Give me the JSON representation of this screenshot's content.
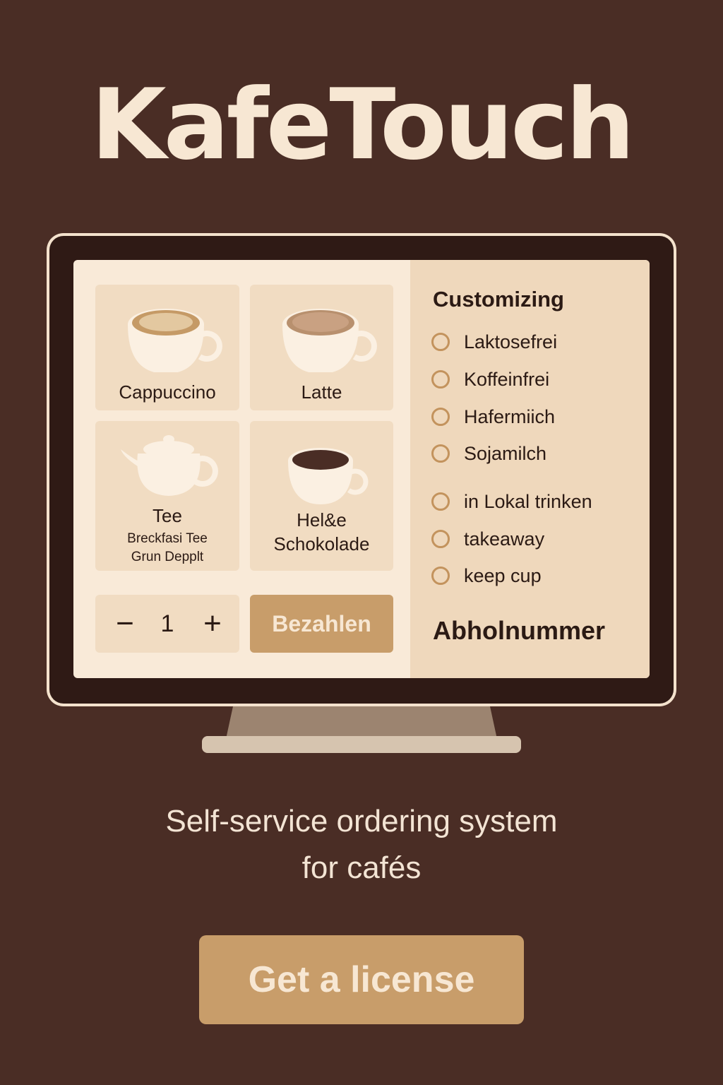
{
  "brand": {
    "title": "KafeTouch"
  },
  "kiosk": {
    "products": [
      {
        "name": "Cappuccino",
        "icon": "cappuccino-cup-icon"
      },
      {
        "name": "Latte",
        "icon": "latte-cup-icon"
      },
      {
        "name": "Tee",
        "sub1": "Breckfasi Tee",
        "sub2": "Grun Depplt",
        "icon": "teapot-icon"
      },
      {
        "name1": "Hel&e",
        "name2": "Schokolade",
        "icon": "hot-chocolate-cup-icon"
      }
    ],
    "quantity": {
      "minus": "−",
      "value": "1",
      "plus": "+"
    },
    "pay_button": "Bezahlen",
    "customizing": {
      "title": "Customizing",
      "options": [
        "Laktosefrei",
        "Koffeinfrei",
        "Hafermiich",
        "Sojamilch"
      ],
      "serving": [
        "in Lokal trinken",
        "takeaway",
        "keep cup"
      ],
      "pickup_label": "Abholnummer"
    }
  },
  "tagline": {
    "line1": "Self-service ordering system",
    "line2": "for cafés"
  },
  "cta": {
    "label": "Get a license"
  },
  "colors": {
    "background": "#4a2d25",
    "accent": "#c89d6a",
    "screen": "#f9ead8",
    "tile": "#f1dcc2",
    "text_light": "#f7e7d3"
  }
}
